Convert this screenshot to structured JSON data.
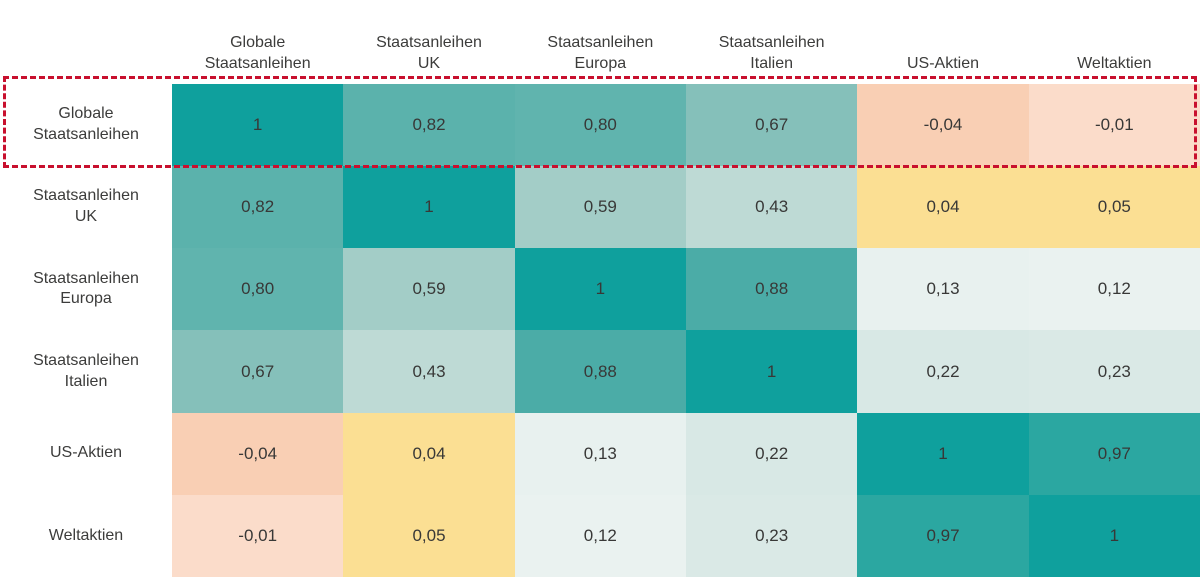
{
  "chart_data": {
    "type": "heatmap",
    "description": "Correlation matrix of asset classes (German labels, decimal commas)",
    "col_headers": [
      "Globale\nStaatsanleihen",
      "Staatsanleihen\nUK",
      "Staatsanleihen\nEuropa",
      "Staatsanleihen\nItalien",
      "US-Aktien",
      "Weltaktien"
    ],
    "row_labels": [
      "Globale\nStaatsanleihen",
      "Staatsanleihen\nUK",
      "Staatsanleihen\nEuropa",
      "Staatsanleihen\nItalien",
      "US-Aktien",
      "Weltaktien"
    ],
    "matrix": [
      [
        1,
        0.82,
        0.8,
        0.67,
        -0.04,
        -0.01
      ],
      [
        0.82,
        1,
        0.59,
        0.43,
        0.04,
        0.05
      ],
      [
        0.8,
        0.59,
        1,
        0.88,
        0.13,
        0.12
      ],
      [
        0.67,
        0.43,
        0.88,
        1,
        0.22,
        0.23
      ],
      [
        -0.04,
        0.04,
        0.13,
        0.22,
        1,
        0.97
      ],
      [
        -0.01,
        0.05,
        0.12,
        0.23,
        0.97,
        1
      ]
    ],
    "display": [
      [
        "1",
        "0,82",
        "0,80",
        "0,67",
        "-0,04",
        "-0,01"
      ],
      [
        "0,82",
        "1",
        "0,59",
        "0,43",
        "0,04",
        "0,05"
      ],
      [
        "0,80",
        "0,59",
        "1",
        "0,88",
        "0,13",
        "0,12"
      ],
      [
        "0,67",
        "0,43",
        "0,88",
        "1",
        "0,22",
        "0,23"
      ],
      [
        "-0,04",
        "0,04",
        "0,13",
        "0,22",
        "1",
        "0,97"
      ],
      [
        "-0,01",
        "0,05",
        "0,12",
        "0,23",
        "0,97",
        "1"
      ]
    ],
    "value_colors": {
      "1": "#0fa09d",
      "0,97": "#2ba7a1",
      "0,88": "#4baca7",
      "0,82": "#5bb2ac",
      "0,80": "#60b4ae",
      "0,67": "#85c0ba",
      "0,59": "#a3cdc7",
      "0,43": "#bedad5",
      "0,23": "#dae9e6",
      "0,22": "#d8e8e5",
      "0,13": "#e8f1ef",
      "0,12": "#eaf2f0",
      "0,05": "#fbdf93",
      "0,04": "#fbdf93",
      "-0,01": "#fbdcca",
      "-0,04": "#f9cfb4"
    },
    "highlight": {
      "target_row": "Globale Staatsanleihen",
      "row_index": 0,
      "style": "dashed-outline",
      "color": "#c8102e"
    },
    "text_color": "#3c3c3b",
    "background": "#ffffff",
    "legend": "none",
    "grid": "off"
  }
}
